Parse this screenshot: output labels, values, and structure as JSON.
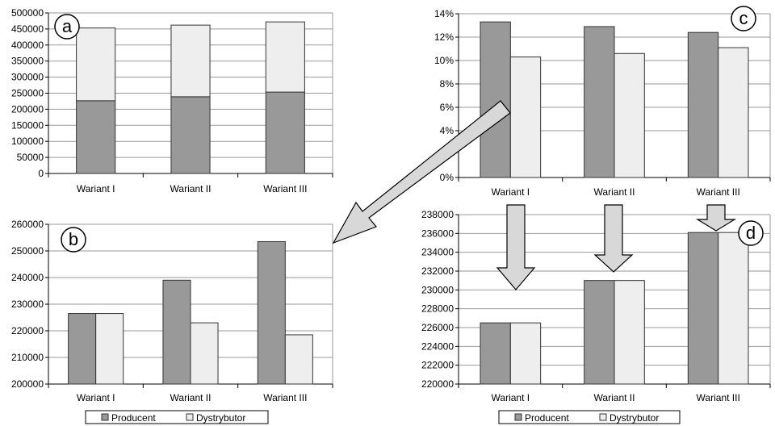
{
  "colors": {
    "producent": "#999999",
    "dystrybutor": "#eeeeee",
    "grid": "#999999",
    "arrow": "#d8d8d8"
  },
  "legend": {
    "items": [
      {
        "label": "Producent",
        "color": "#999999"
      },
      {
        "label": "Dystrybutor",
        "color": "#eeeeee"
      }
    ]
  },
  "chart_data": [
    {
      "id": "a",
      "badge": "a",
      "type": "bar",
      "stacked": true,
      "categories": [
        "Wariant I",
        "Wariant II",
        "Wariant III"
      ],
      "series": [
        {
          "name": "Producent",
          "values": [
            226500,
            239000,
            253500
          ]
        },
        {
          "name": "Dystrybutor",
          "values": [
            226500,
            223000,
            218500
          ]
        }
      ],
      "ylim": [
        0,
        500000
      ],
      "yticks": [
        0,
        50000,
        100000,
        150000,
        200000,
        250000,
        300000,
        350000,
        400000,
        450000,
        500000
      ],
      "ytick_labels": [
        "0",
        "50000",
        "100000",
        "150000",
        "200000",
        "250000",
        "300000",
        "350000",
        "400000",
        "450000",
        "500000"
      ],
      "grid": true
    },
    {
      "id": "b",
      "badge": "b",
      "type": "bar",
      "stacked": false,
      "categories": [
        "Wariant I",
        "Wariant II",
        "Wariant III"
      ],
      "series": [
        {
          "name": "Producent",
          "values": [
            226500,
            239000,
            253500
          ]
        },
        {
          "name": "Dystrybutor",
          "values": [
            226500,
            223000,
            218500
          ]
        }
      ],
      "ylim": [
        200000,
        260000
      ],
      "yticks": [
        200000,
        210000,
        220000,
        230000,
        240000,
        250000,
        260000
      ],
      "ytick_labels": [
        "200000",
        "210000",
        "220000",
        "230000",
        "240000",
        "250000",
        "260000"
      ],
      "grid": true,
      "legend": "bottom"
    },
    {
      "id": "c",
      "badge": "c",
      "type": "bar",
      "stacked": false,
      "categories": [
        "Wariant I",
        "Wariant II",
        "Wariant III"
      ],
      "series": [
        {
          "name": "Producent",
          "values": [
            13.3,
            12.9,
            12.4
          ]
        },
        {
          "name": "Dystrybutor",
          "values": [
            10.3,
            10.6,
            11.1
          ]
        }
      ],
      "ylim": [
        0,
        14
      ],
      "yticks": [
        0,
        4,
        6,
        8,
        10,
        12,
        14
      ],
      "ytick_labels": [
        "0%",
        "4%",
        "6%",
        "8%",
        "10%",
        "12%",
        "14%"
      ],
      "grid": true
    },
    {
      "id": "d",
      "badge": "d",
      "type": "bar",
      "stacked": false,
      "categories": [
        "Wariant I",
        "Wariant II",
        "Wariant III"
      ],
      "series": [
        {
          "name": "Producent",
          "values": [
            226500,
            231000,
            236100
          ]
        },
        {
          "name": "Dystrybutor",
          "values": [
            226500,
            231000,
            236100
          ]
        }
      ],
      "ylim": [
        220000,
        238000
      ],
      "yticks": [
        220000,
        222000,
        224000,
        226000,
        228000,
        230000,
        232000,
        234000,
        236000,
        238000
      ],
      "ytick_labels": [
        "220000",
        "222000",
        "224000",
        "226000",
        "228000",
        "230000",
        "232000",
        "234000",
        "236000",
        "238000"
      ],
      "grid": true,
      "legend": "bottom"
    }
  ]
}
